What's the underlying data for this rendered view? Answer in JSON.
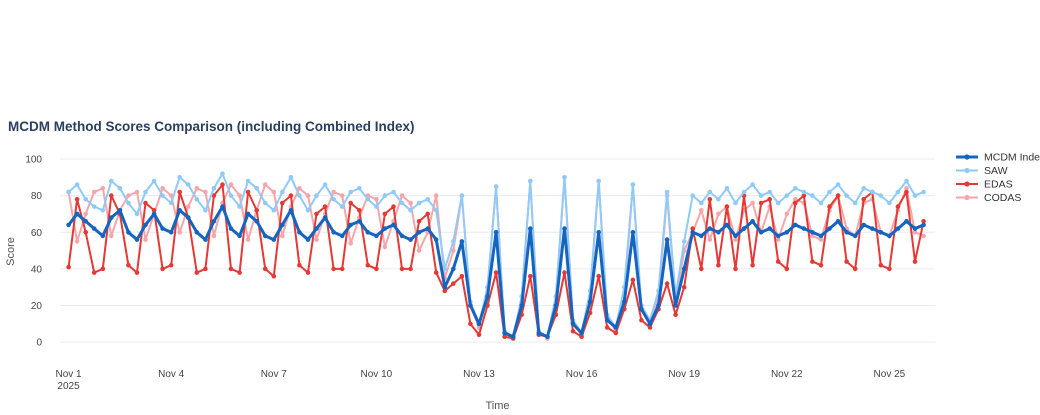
{
  "chart_data": {
    "type": "line",
    "title": "MCDM Method Scores Comparison (including Combined Index)",
    "xlabel": "Time",
    "ylabel": "Score",
    "ylim": [
      -7,
      106
    ],
    "xlim": [
      "2025-10-31 18:00",
      "2025-11-26 08:00"
    ],
    "grid": true,
    "legend_position": "right",
    "x_ticks": [
      {
        "date": "2025-11-01",
        "label": "Nov 1",
        "sublabel": "2025"
      },
      {
        "date": "2025-11-04",
        "label": "Nov 4"
      },
      {
        "date": "2025-11-07",
        "label": "Nov 7"
      },
      {
        "date": "2025-11-10",
        "label": "Nov 10"
      },
      {
        "date": "2025-11-13",
        "label": "Nov 13"
      },
      {
        "date": "2025-11-16",
        "label": "Nov 16"
      },
      {
        "date": "2025-11-19",
        "label": "Nov 19"
      },
      {
        "date": "2025-11-22",
        "label": "Nov 22"
      },
      {
        "date": "2025-11-25",
        "label": "Nov 25"
      }
    ],
    "y_ticks": [
      0,
      20,
      40,
      60,
      80,
      100
    ],
    "x": [
      "2025-11-01 00:00",
      "2025-11-01 06:00",
      "2025-11-01 12:00",
      "2025-11-01 18:00",
      "2025-11-02 00:00",
      "2025-11-02 06:00",
      "2025-11-02 12:00",
      "2025-11-02 18:00",
      "2025-11-03 00:00",
      "2025-11-03 06:00",
      "2025-11-03 12:00",
      "2025-11-03 18:00",
      "2025-11-04 00:00",
      "2025-11-04 06:00",
      "2025-11-04 12:00",
      "2025-11-04 18:00",
      "2025-11-05 00:00",
      "2025-11-05 06:00",
      "2025-11-05 12:00",
      "2025-11-05 18:00",
      "2025-11-06 00:00",
      "2025-11-06 06:00",
      "2025-11-06 12:00",
      "2025-11-06 18:00",
      "2025-11-07 00:00",
      "2025-11-07 06:00",
      "2025-11-07 12:00",
      "2025-11-07 18:00",
      "2025-11-08 00:00",
      "2025-11-08 06:00",
      "2025-11-08 12:00",
      "2025-11-08 18:00",
      "2025-11-09 00:00",
      "2025-11-09 06:00",
      "2025-11-09 12:00",
      "2025-11-09 18:00",
      "2025-11-10 00:00",
      "2025-11-10 06:00",
      "2025-11-10 12:00",
      "2025-11-10 18:00",
      "2025-11-11 00:00",
      "2025-11-11 06:00",
      "2025-11-11 12:00",
      "2025-11-11 18:00",
      "2025-11-12 00:00",
      "2025-11-12 06:00",
      "2025-11-12 12:00",
      "2025-11-12 18:00",
      "2025-11-13 00:00",
      "2025-11-13 06:00",
      "2025-11-13 12:00",
      "2025-11-13 18:00",
      "2025-11-14 00:00",
      "2025-11-14 06:00",
      "2025-11-14 12:00",
      "2025-11-14 18:00",
      "2025-11-15 00:00",
      "2025-11-15 06:00",
      "2025-11-15 12:00",
      "2025-11-15 18:00",
      "2025-11-16 00:00",
      "2025-11-16 06:00",
      "2025-11-16 12:00",
      "2025-11-16 18:00",
      "2025-11-17 00:00",
      "2025-11-17 06:00",
      "2025-11-17 12:00",
      "2025-11-17 18:00",
      "2025-11-18 00:00",
      "2025-11-18 06:00",
      "2025-11-18 12:00",
      "2025-11-18 18:00",
      "2025-11-19 00:00",
      "2025-11-19 06:00",
      "2025-11-19 12:00",
      "2025-11-19 18:00",
      "2025-11-20 00:00",
      "2025-11-20 06:00",
      "2025-11-20 12:00",
      "2025-11-20 18:00",
      "2025-11-21 00:00",
      "2025-11-21 06:00",
      "2025-11-21 12:00",
      "2025-11-21 18:00",
      "2025-11-22 00:00",
      "2025-11-22 06:00",
      "2025-11-22 12:00",
      "2025-11-22 18:00",
      "2025-11-23 00:00",
      "2025-11-23 06:00",
      "2025-11-23 12:00",
      "2025-11-23 18:00",
      "2025-11-24 00:00",
      "2025-11-24 06:00",
      "2025-11-24 12:00",
      "2025-11-24 18:00",
      "2025-11-25 00:00",
      "2025-11-25 06:00",
      "2025-11-25 12:00",
      "2025-11-25 18:00",
      "2025-11-26 00:00"
    ],
    "series": [
      {
        "name": "MCDM Index",
        "color": "#1565c0",
        "line_width": 3,
        "values": [
          64,
          70,
          66,
          62,
          58,
          68,
          72,
          60,
          56,
          64,
          70,
          62,
          60,
          72,
          68,
          60,
          56,
          66,
          74,
          62,
          58,
          70,
          66,
          58,
          56,
          64,
          72,
          60,
          56,
          62,
          68,
          60,
          58,
          64,
          66,
          60,
          58,
          62,
          64,
          58,
          56,
          60,
          62,
          56,
          30,
          40,
          55,
          20,
          10,
          25,
          60,
          5,
          3,
          20,
          62,
          5,
          3,
          20,
          62,
          10,
          5,
          22,
          60,
          12,
          8,
          22,
          60,
          18,
          10,
          20,
          56,
          20,
          40,
          60,
          58,
          62,
          60,
          64,
          58,
          62,
          66,
          60,
          62,
          58,
          60,
          64,
          62,
          60,
          58,
          62,
          66,
          60,
          58,
          64,
          62,
          60,
          58,
          62,
          66,
          62,
          64
        ]
      },
      {
        "name": "SAW",
        "color": "#90caf9",
        "line_width": 2,
        "values": [
          82,
          86,
          78,
          74,
          72,
          88,
          84,
          76,
          70,
          82,
          88,
          80,
          76,
          90,
          86,
          78,
          72,
          84,
          92,
          80,
          74,
          88,
          84,
          76,
          72,
          82,
          90,
          80,
          72,
          80,
          86,
          78,
          74,
          82,
          84,
          78,
          74,
          80,
          82,
          76,
          72,
          76,
          78,
          72,
          40,
          55,
          80,
          22,
          10,
          30,
          85,
          6,
          3,
          25,
          88,
          6,
          3,
          25,
          90,
          12,
          5,
          28,
          88,
          15,
          8,
          30,
          86,
          20,
          12,
          28,
          82,
          25,
          55,
          80,
          76,
          82,
          78,
          84,
          76,
          82,
          86,
          80,
          82,
          76,
          80,
          84,
          82,
          80,
          76,
          82,
          86,
          80,
          76,
          84,
          82,
          80,
          76,
          82,
          88,
          80,
          82
        ]
      },
      {
        "name": "EDAS",
        "color": "#e53935",
        "line_width": 2,
        "values": [
          41,
          78,
          60,
          38,
          40,
          80,
          70,
          42,
          38,
          76,
          72,
          40,
          42,
          82,
          68,
          38,
          40,
          80,
          86,
          40,
          38,
          82,
          72,
          40,
          36,
          76,
          80,
          42,
          38,
          70,
          74,
          40,
          40,
          76,
          72,
          42,
          40,
          70,
          74,
          40,
          40,
          66,
          70,
          38,
          28,
          32,
          36,
          10,
          4,
          20,
          38,
          3,
          2,
          15,
          36,
          4,
          3,
          15,
          38,
          6,
          3,
          16,
          36,
          8,
          5,
          18,
          34,
          12,
          8,
          18,
          32,
          15,
          30,
          62,
          40,
          78,
          42,
          74,
          40,
          80,
          42,
          76,
          78,
          44,
          40,
          76,
          80,
          44,
          42,
          74,
          80,
          44,
          40,
          78,
          82,
          42,
          40,
          74,
          82,
          44,
          66
        ]
      },
      {
        "name": "CODAS",
        "color": "#f4a6ab",
        "line_width": 2,
        "values": [
          82,
          55,
          70,
          82,
          84,
          58,
          72,
          80,
          82,
          56,
          70,
          84,
          80,
          60,
          74,
          84,
          82,
          58,
          76,
          86,
          80,
          56,
          72,
          86,
          82,
          58,
          74,
          84,
          80,
          56,
          70,
          82,
          80,
          54,
          68,
          80,
          78,
          52,
          66,
          80,
          76,
          50,
          60,
          80,
          35,
          50,
          80,
          20,
          8,
          30,
          85,
          5,
          2,
          25,
          88,
          6,
          2,
          25,
          90,
          10,
          4,
          25,
          88,
          14,
          6,
          26,
          86,
          18,
          10,
          24,
          80,
          22,
          50,
          60,
          72,
          56,
          70,
          74,
          56,
          72,
          76,
          60,
          74,
          56,
          70,
          78,
          76,
          58,
          56,
          72,
          80,
          62,
          58,
          76,
          78,
          60,
          58,
          72,
          84,
          60,
          58
        ]
      }
    ]
  }
}
